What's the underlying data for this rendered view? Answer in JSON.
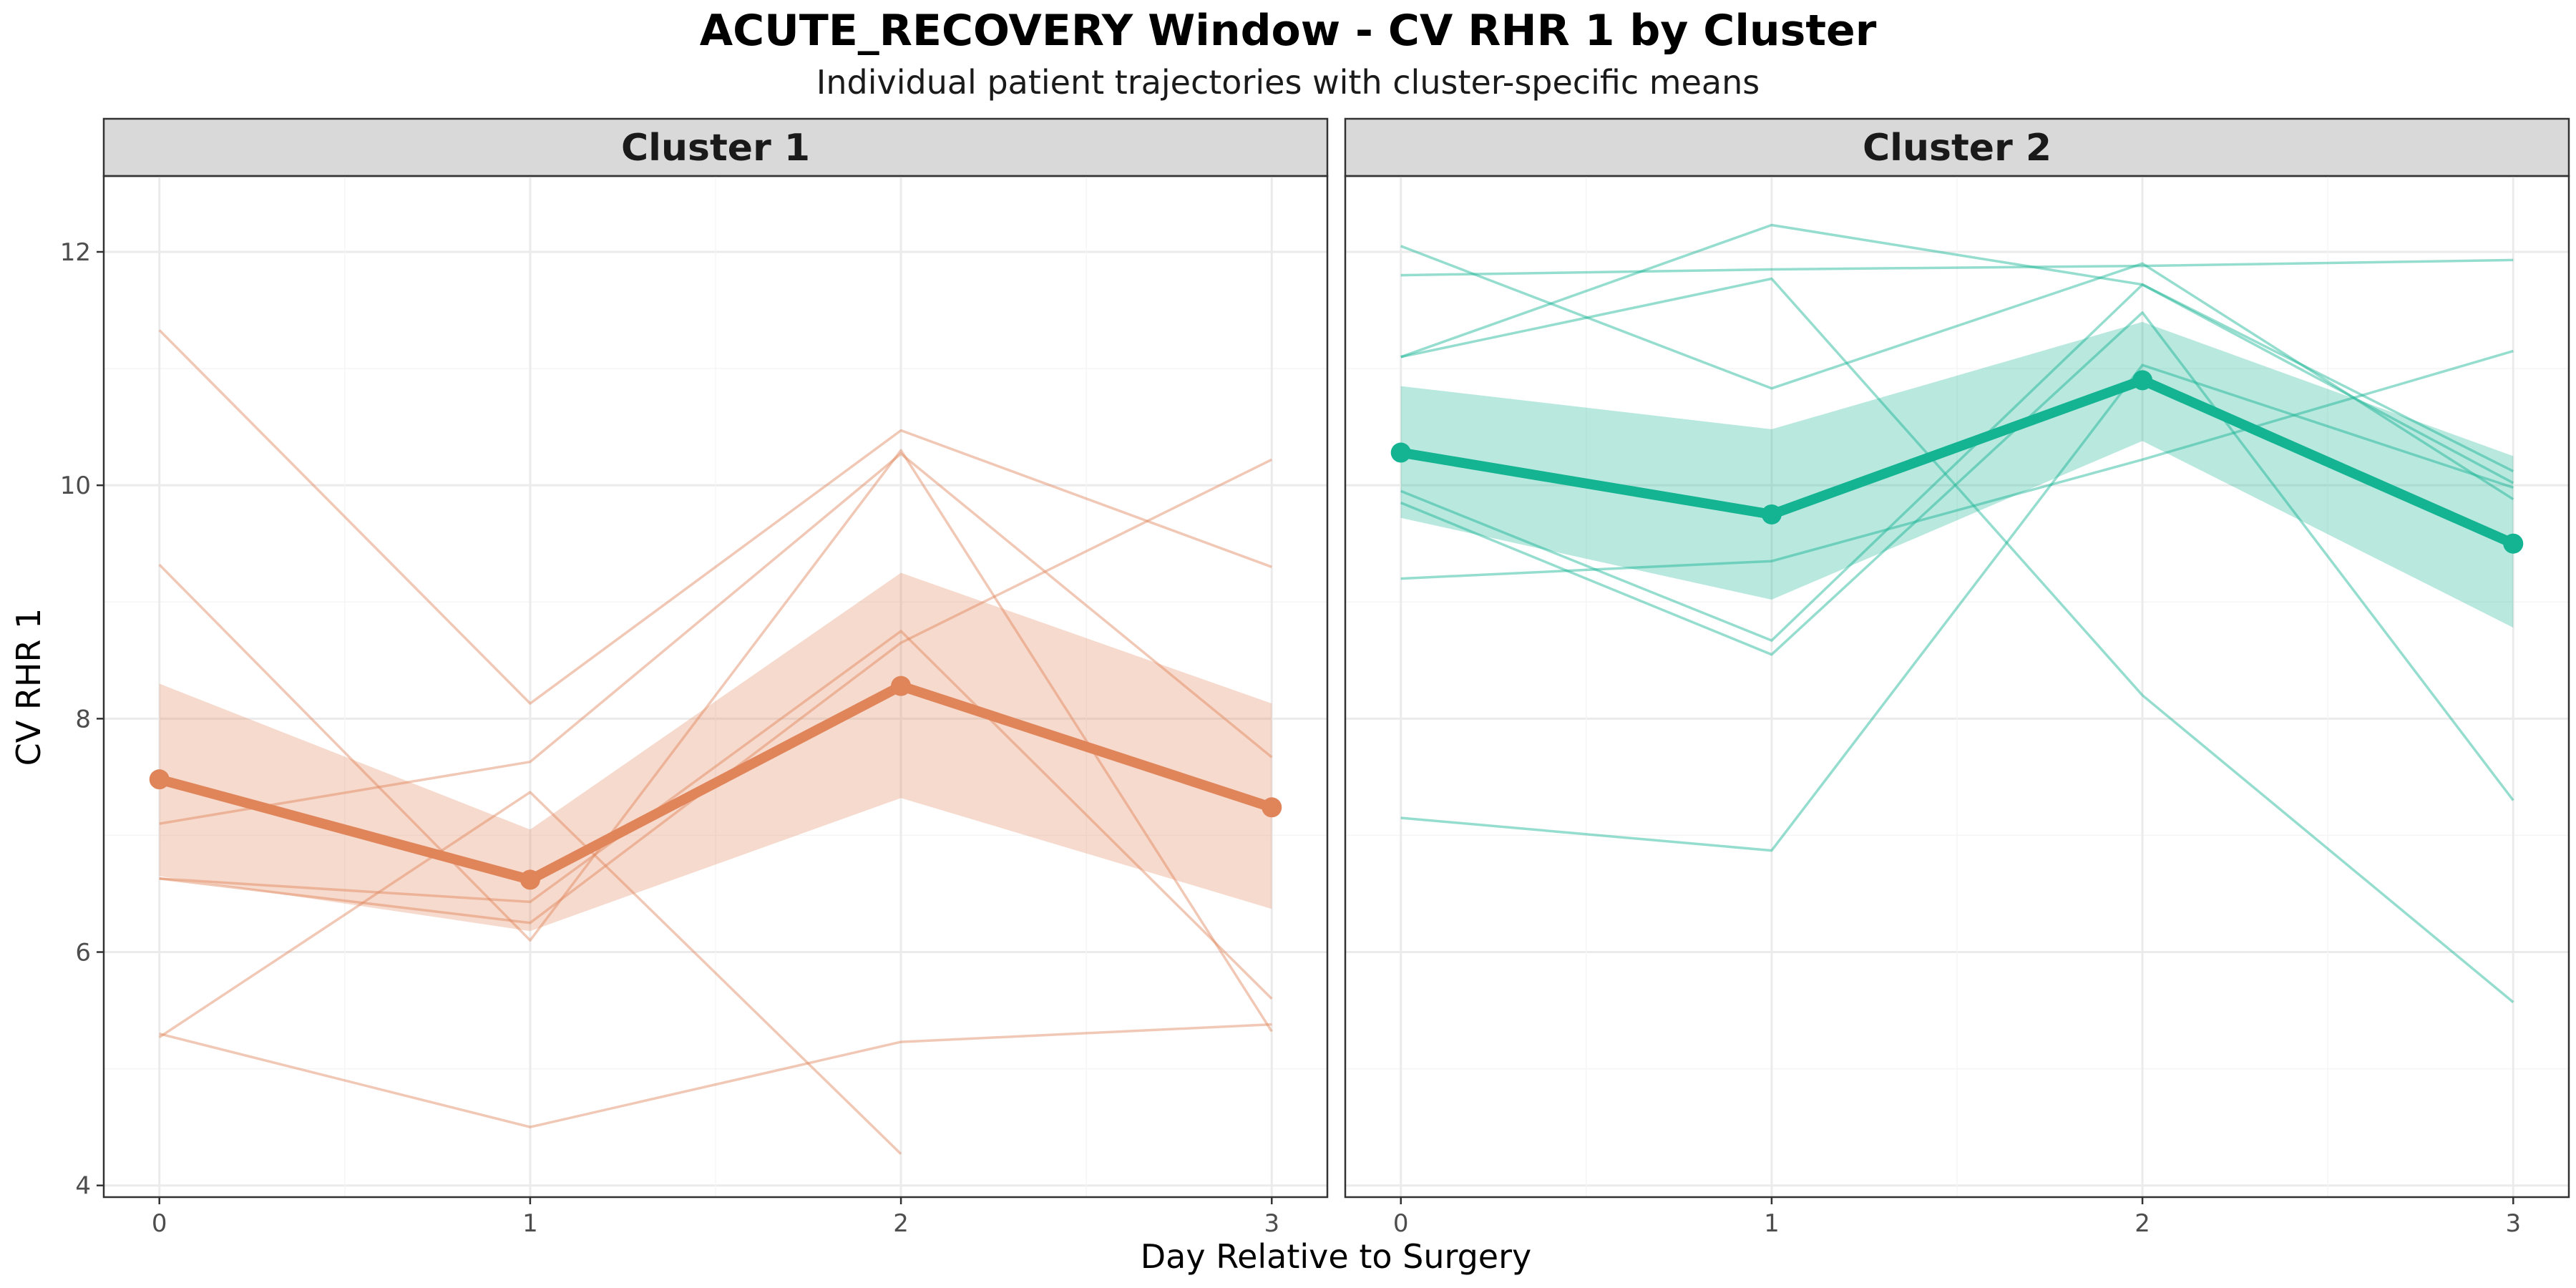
{
  "chart_data": {
    "type": "line",
    "title": "ACUTE_RECOVERY Window - CV RHR 1 by Cluster",
    "subtitle": "Individual patient trajectories with cluster-specific means",
    "xlabel": "Day Relative to Surgery",
    "ylabel": "CV RHR 1",
    "x": [
      0,
      1,
      2,
      3
    ],
    "x_ticks": [
      "0",
      "1",
      "2",
      "3"
    ],
    "y_ticks": [
      "4",
      "6",
      "8",
      "10",
      "12"
    ],
    "xlim": [
      -0.15,
      3.15
    ],
    "ylim": [
      3.9,
      12.65
    ],
    "grid": true,
    "legend": "none",
    "panels": [
      {
        "name": "Cluster 1",
        "color": "#E0845A",
        "mean": [
          7.48,
          6.62,
          8.28,
          7.24
        ],
        "ribbon_lower": [
          6.65,
          6.18,
          7.32,
          6.37
        ],
        "ribbon_upper": [
          8.3,
          7.05,
          9.25,
          8.13
        ],
        "patients": [
          [
            11.33,
            8.13,
            10.47,
            9.3
          ],
          [
            9.32,
            6.1,
            10.3,
            5.32
          ],
          [
            7.1,
            7.63,
            10.27,
            7.67
          ],
          [
            6.63,
            6.43,
            8.75,
            5.6
          ],
          [
            6.63,
            6.25,
            8.65,
            10.22
          ],
          [
            5.27,
            7.37,
            4.27,
            null
          ],
          [
            5.3,
            4.5,
            5.23,
            5.38
          ]
        ]
      },
      {
        "name": "Cluster 2",
        "color": "#14B493",
        "mean": [
          10.28,
          9.75,
          10.9,
          9.5
        ],
        "ribbon_lower": [
          9.72,
          9.02,
          10.38,
          8.78
        ],
        "ribbon_upper": [
          10.85,
          10.48,
          11.4,
          10.25
        ],
        "patients": [
          [
            12.05,
            10.83,
            11.9,
            9.88
          ],
          [
            11.8,
            11.85,
            11.88,
            11.93
          ],
          [
            11.1,
            12.23,
            11.72,
            10.02
          ],
          [
            11.1,
            11.77,
            8.2,
            5.57
          ],
          [
            9.95,
            8.67,
            11.72,
            10.12
          ],
          [
            9.85,
            8.55,
            11.48,
            7.3
          ],
          [
            9.2,
            9.35,
            10.22,
            11.15
          ],
          [
            7.15,
            6.87,
            11.03,
            9.98
          ]
        ]
      }
    ]
  }
}
